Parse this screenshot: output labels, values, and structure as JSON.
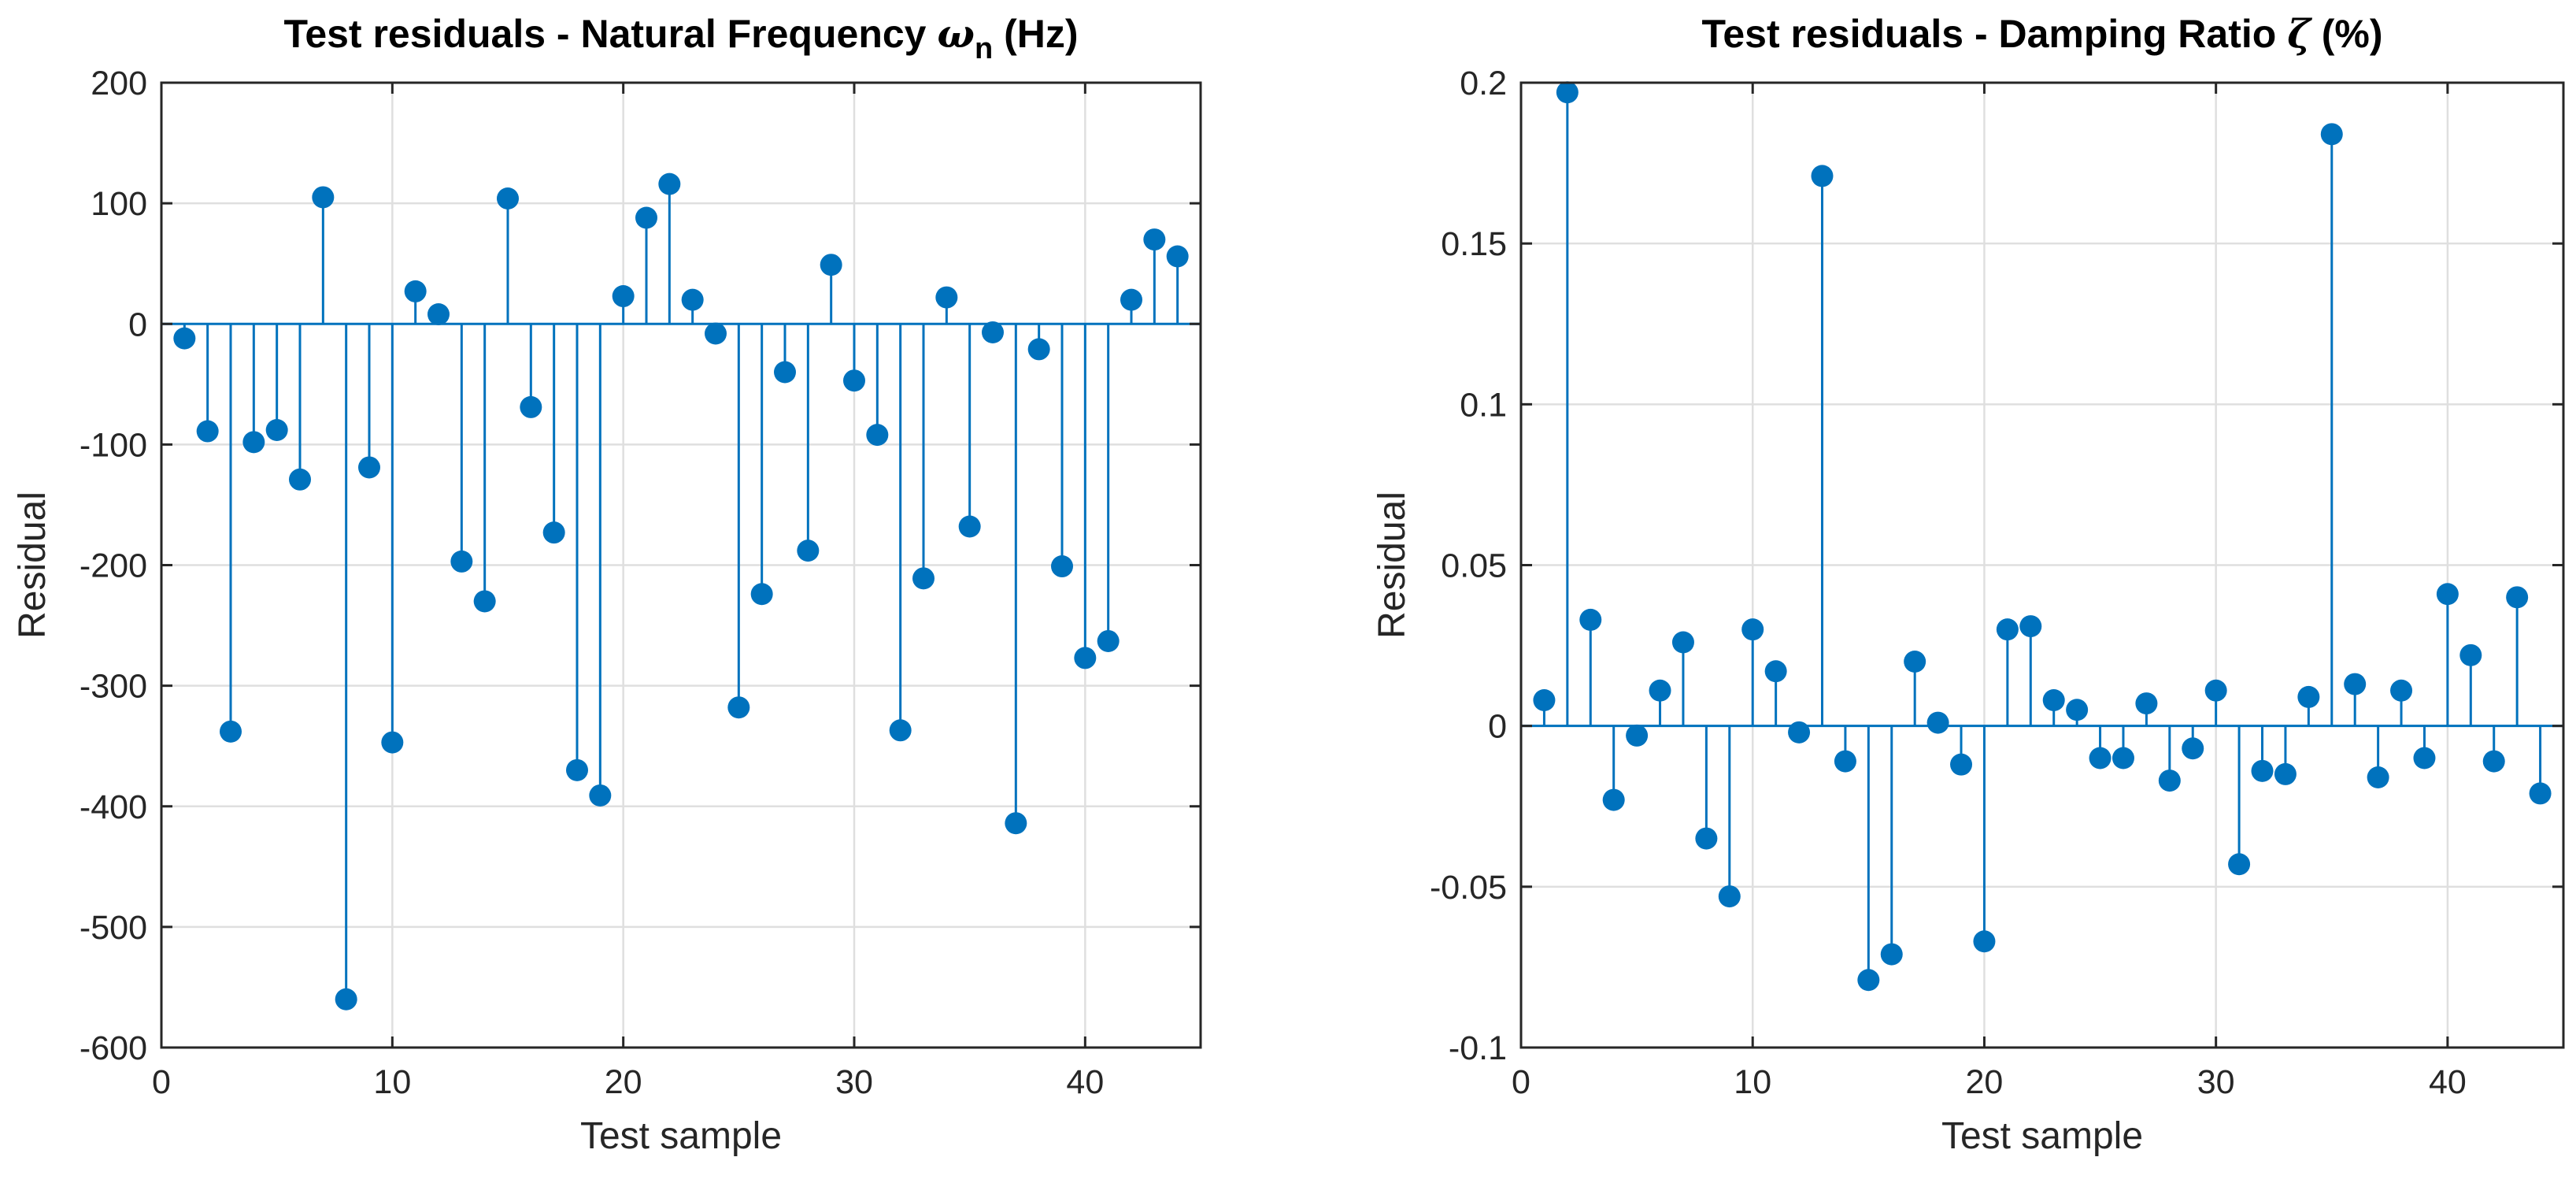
{
  "chart_data": [
    {
      "type": "stem",
      "title": "Test residuals - Natural Frequency ω_n (Hz)",
      "title_main": "Test residuals - Natural Frequency ",
      "title_symbol": "ω",
      "title_subscript": "n",
      "title_suffix": " (Hz)",
      "xlabel": "Test sample",
      "ylabel": "Residual",
      "xlim": [
        0,
        45
      ],
      "ylim": [
        -600,
        200
      ],
      "xticks": [
        0,
        10,
        20,
        30,
        40
      ],
      "yticks": [
        -600,
        -500,
        -400,
        -300,
        -200,
        -100,
        0,
        100,
        200
      ],
      "ytick_labels": [
        "-600",
        "-500",
        "-400",
        "-300",
        "-200",
        "-100",
        "0",
        "100",
        "200"
      ],
      "grid": true,
      "color": "#0072bd",
      "x": [
        1,
        2,
        3,
        4,
        5,
        6,
        7,
        8,
        9,
        10,
        11,
        12,
        13,
        14,
        15,
        16,
        17,
        18,
        19,
        20,
        21,
        22,
        23,
        24,
        25,
        26,
        27,
        28,
        29,
        30,
        31,
        32,
        33,
        34,
        35,
        36,
        37,
        38,
        39,
        40,
        41,
        42,
        43,
        44
      ],
      "values": [
        -12,
        -89,
        -338,
        -98,
        -88,
        -129,
        105,
        -560,
        -119,
        -347,
        27,
        8,
        -197,
        -230,
        104,
        -69,
        -173,
        -370,
        -391,
        23,
        88,
        116,
        20,
        -8,
        -318,
        -224,
        -40,
        -188,
        49,
        -47,
        -92,
        -337,
        -211,
        22,
        -168,
        -7,
        -414,
        -21,
        -201,
        -277,
        -263,
        20,
        70,
        56
      ]
    },
    {
      "type": "stem",
      "title": "Test residuals - Damping Ratio ζ (%)",
      "title_main": "Test residuals - Damping Ratio ",
      "title_symbol": "ζ",
      "title_subscript": "",
      "title_suffix": " (%)",
      "xlabel": "Test sample",
      "ylabel": "Residual",
      "xlim": [
        0,
        45
      ],
      "ylim": [
        -0.1,
        0.2
      ],
      "xticks": [
        0,
        10,
        20,
        30,
        40
      ],
      "yticks": [
        -0.1,
        -0.05,
        0,
        0.05,
        0.1,
        0.15,
        0.2
      ],
      "ytick_labels": [
        "-0.1",
        "-0.05",
        "0",
        "0.05",
        "0.1",
        "0.15",
        "0.2"
      ],
      "grid": true,
      "color": "#0072bd",
      "x": [
        1,
        2,
        3,
        4,
        5,
        6,
        7,
        8,
        9,
        10,
        11,
        12,
        13,
        14,
        15,
        16,
        17,
        18,
        19,
        20,
        21,
        22,
        23,
        24,
        25,
        26,
        27,
        28,
        29,
        30,
        31,
        32,
        33,
        34,
        35,
        36,
        37,
        38,
        39,
        40,
        41,
        42,
        43,
        44
      ],
      "values": [
        0.008,
        0.197,
        0.033,
        -0.023,
        -0.003,
        0.011,
        0.026,
        -0.035,
        -0.053,
        0.03,
        0.017,
        -0.002,
        0.171,
        -0.011,
        -0.079,
        -0.071,
        0.02,
        0.001,
        -0.012,
        -0.067,
        0.03,
        0.031,
        0.008,
        0.005,
        -0.01,
        -0.01,
        0.007,
        -0.017,
        -0.007,
        0.011,
        -0.043,
        -0.014,
        -0.015,
        0.009,
        0.184,
        0.013,
        -0.016,
        0.011,
        -0.01,
        0.041,
        0.022,
        -0.011,
        0.04,
        -0.021
      ]
    }
  ]
}
